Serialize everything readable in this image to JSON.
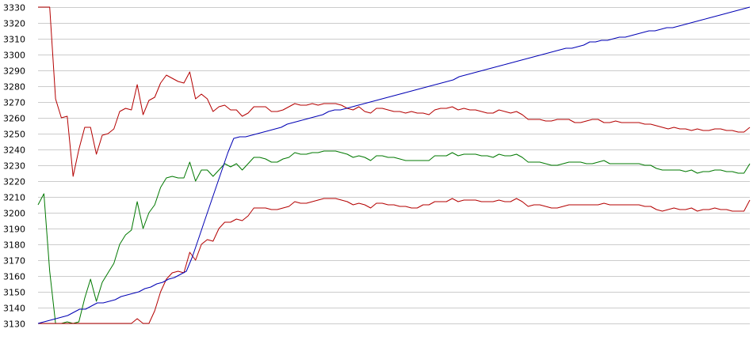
{
  "chart_data": {
    "type": "line",
    "title": "",
    "xlabel": "",
    "ylabel": "",
    "ylim": [
      3130,
      3330
    ],
    "y_ticks": [
      3130,
      3140,
      3150,
      3160,
      3170,
      3180,
      3190,
      3200,
      3210,
      3220,
      3230,
      3240,
      3250,
      3260,
      3270,
      3280,
      3290,
      3300,
      3310,
      3320,
      3330
    ],
    "grid": "horizontal",
    "legend": "none",
    "colors": {
      "upper": "#b40000",
      "middle": "#007800",
      "lower": "#b40000",
      "trend": "#0000b4",
      "grid": "#cccccc",
      "background": "#ffffff"
    },
    "series": [
      {
        "key": "upper",
        "values": [
          3330,
          3330,
          3330,
          3272,
          3260,
          3261,
          3223,
          3240,
          3254,
          3254,
          3237,
          3249,
          3250,
          3253,
          3264,
          3266,
          3265,
          3281,
          3262,
          3271,
          3273,
          3282,
          3287,
          3285,
          3283,
          3282,
          3289,
          3272,
          3275,
          3272,
          3264,
          3267,
          3268,
          3265,
          3265,
          3261,
          3263,
          3267,
          3267,
          3267,
          3264,
          3264,
          3265,
          3267,
          3269,
          3268,
          3268,
          3269,
          3268,
          3269,
          3269,
          3269,
          3268,
          3266,
          3265,
          3267,
          3264,
          3263,
          3266,
          3266,
          3265,
          3264,
          3264,
          3263,
          3264,
          3263,
          3263,
          3262,
          3265,
          3266,
          3266,
          3267,
          3265,
          3266,
          3265,
          3265,
          3264,
          3263,
          3263,
          3265,
          3264,
          3263,
          3264,
          3262,
          3259,
          3259,
          3259,
          3258,
          3258,
          3259,
          3259,
          3259,
          3257,
          3257,
          3258,
          3259,
          3259,
          3257,
          3257,
          3258,
          3257,
          3257,
          3257,
          3257,
          3256,
          3256,
          3255,
          3254,
          3253,
          3254,
          3253,
          3253,
          3252,
          3253,
          3252,
          3252,
          3253,
          3253,
          3252,
          3252,
          3251,
          3251,
          3254
        ]
      },
      {
        "key": "middle",
        "values": [
          3205,
          3212,
          3163,
          3130,
          3130,
          3131,
          3130,
          3131,
          3146,
          3158,
          3144,
          3156,
          3162,
          3168,
          3180,
          3186,
          3189,
          3207,
          3190,
          3200,
          3205,
          3216,
          3222,
          3223,
          3222,
          3222,
          3232,
          3220,
          3227,
          3227,
          3223,
          3227,
          3231,
          3229,
          3231,
          3227,
          3231,
          3235,
          3235,
          3234,
          3232,
          3232,
          3234,
          3235,
          3238,
          3237,
          3237,
          3238,
          3238,
          3239,
          3239,
          3239,
          3238,
          3237,
          3235,
          3236,
          3235,
          3233,
          3236,
          3236,
          3235,
          3235,
          3234,
          3233,
          3233,
          3233,
          3233,
          3233,
          3236,
          3236,
          3236,
          3238,
          3236,
          3237,
          3237,
          3237,
          3236,
          3236,
          3235,
          3237,
          3236,
          3236,
          3237,
          3235,
          3232,
          3232,
          3232,
          3231,
          3230,
          3230,
          3231,
          3232,
          3232,
          3232,
          3231,
          3231,
          3232,
          3233,
          3231,
          3231,
          3231,
          3231,
          3231,
          3231,
          3230,
          3230,
          3228,
          3227,
          3227,
          3227,
          3227,
          3226,
          3227,
          3225,
          3226,
          3226,
          3227,
          3227,
          3226,
          3226,
          3225,
          3225,
          3231
        ]
      },
      {
        "key": "lower",
        "values": [
          3130,
          3130,
          3130,
          3130,
          3130,
          3130,
          3130,
          3130,
          3130,
          3130,
          3130,
          3130,
          3130,
          3130,
          3130,
          3130,
          3130,
          3133,
          3130,
          3130,
          3138,
          3150,
          3158,
          3162,
          3163,
          3162,
          3175,
          3170,
          3180,
          3183,
          3182,
          3190,
          3194,
          3194,
          3196,
          3195,
          3198,
          3203,
          3203,
          3203,
          3202,
          3202,
          3203,
          3204,
          3207,
          3206,
          3206,
          3207,
          3208,
          3209,
          3209,
          3209,
          3208,
          3207,
          3205,
          3206,
          3205,
          3203,
          3206,
          3206,
          3205,
          3205,
          3204,
          3204,
          3203,
          3203,
          3205,
          3205,
          3207,
          3207,
          3207,
          3209,
          3207,
          3208,
          3208,
          3208,
          3207,
          3207,
          3207,
          3208,
          3207,
          3207,
          3209,
          3207,
          3204,
          3205,
          3205,
          3204,
          3203,
          3203,
          3204,
          3205,
          3205,
          3205,
          3205,
          3205,
          3205,
          3206,
          3205,
          3205,
          3205,
          3205,
          3205,
          3205,
          3204,
          3204,
          3202,
          3201,
          3202,
          3203,
          3202,
          3202,
          3203,
          3201,
          3202,
          3202,
          3203,
          3202,
          3202,
          3201,
          3201,
          3201,
          3208
        ]
      },
      {
        "key": "trend",
        "values": [
          3130,
          3131,
          3132,
          3133,
          3134,
          3135,
          3137,
          3139,
          3139,
          3141,
          3143,
          3143,
          3144,
          3145,
          3147,
          3148,
          3149,
          3150,
          3152,
          3153,
          3155,
          3156,
          3158,
          3159,
          3161,
          3163,
          3172,
          3183,
          3194,
          3205,
          3216,
          3227,
          3238,
          3247,
          3248,
          3248,
          3249,
          3250,
          3251,
          3252,
          3253,
          3254,
          3256,
          3257,
          3258,
          3259,
          3260,
          3261,
          3262,
          3264,
          3265,
          3265,
          3266,
          3267,
          3268,
          3269,
          3270,
          3271,
          3272,
          3273,
          3274,
          3275,
          3276,
          3277,
          3278,
          3279,
          3280,
          3281,
          3282,
          3283,
          3284,
          3286,
          3287,
          3288,
          3289,
          3290,
          3291,
          3292,
          3293,
          3294,
          3295,
          3296,
          3297,
          3298,
          3299,
          3300,
          3301,
          3302,
          3303,
          3304,
          3304,
          3305,
          3306,
          3308,
          3308,
          3309,
          3309,
          3310,
          3311,
          3311,
          3312,
          3313,
          3314,
          3315,
          3315,
          3316,
          3317,
          3317,
          3318,
          3319,
          3320,
          3321,
          3322,
          3323,
          3324,
          3325,
          3326,
          3327,
          3328,
          3329,
          3330
        ]
      }
    ]
  }
}
